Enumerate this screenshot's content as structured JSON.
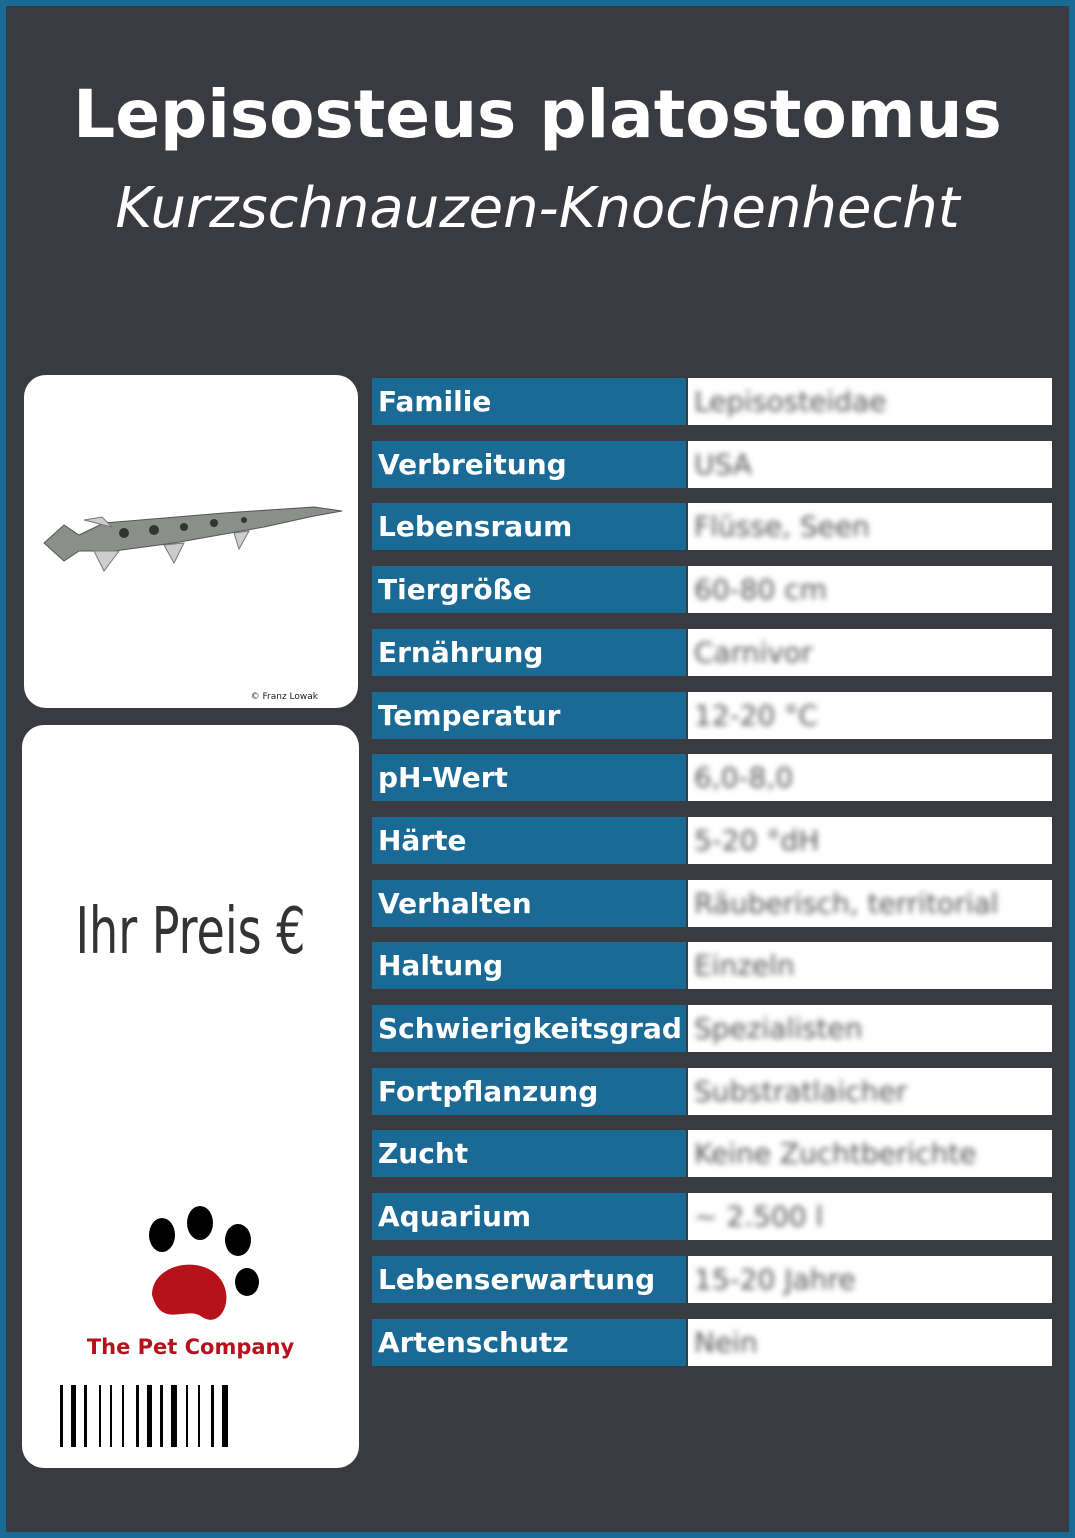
{
  "header": {
    "title": "Lepisosteus platostomus",
    "subtitle": "Kurzschnauzen-Knochenhecht"
  },
  "image": {
    "credit": "© Franz Lowak"
  },
  "price": {
    "label": "Ihr Preis €"
  },
  "logo": {
    "name": "The Pet Company"
  },
  "table": {
    "rows": [
      [
        "Familie",
        "Lepisosteidae"
      ],
      [
        "Verbreitung",
        "USA"
      ],
      [
        "Lebensraum",
        "Flüsse, Seen"
      ],
      [
        "Tiergröße",
        "60-80 cm"
      ],
      [
        "Ernährung",
        "Carnivor"
      ],
      [
        "Temperatur",
        "12-20 °C"
      ],
      [
        "pH-Wert",
        "6,0-8,0"
      ],
      [
        "Härte",
        "5-20 °dH"
      ],
      [
        "Verhalten",
        "Räuberisch, territorial"
      ],
      [
        "Haltung",
        "Einzeln"
      ],
      [
        "Schwierigkeitsgrad",
        "Spezialisten"
      ],
      [
        "Fortpflanzung",
        "Substratlaicher"
      ],
      [
        "Zucht",
        "Keine Zuchtberichte"
      ],
      [
        "Aquarium",
        "~ 2.500 l"
      ],
      [
        "Lebenserwartung",
        "15-20 Jahre"
      ],
      [
        "Artenschutz",
        "Nein"
      ]
    ]
  }
}
